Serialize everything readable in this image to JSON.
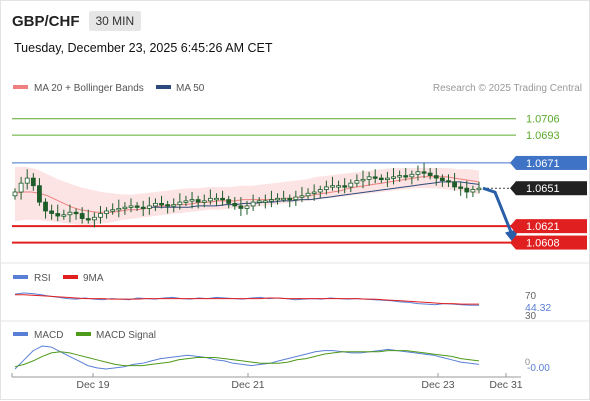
{
  "header": {
    "symbol": "GBP/CHF",
    "timeframe": "30 MIN",
    "datetime": "Tuesday, December 23, 2025 6:45:26 AM CET"
  },
  "legend": {
    "ma20_label": "MA 20 + Bollinger Bands",
    "ma50_label": "MA 50",
    "copyright": "Research © 2025 Trading Central"
  },
  "colors": {
    "ma20": "#f08080",
    "ma50": "#2e4a7d",
    "bands_fill": "#fde4e4",
    "candle": "#1e5c2a",
    "resistance_blue": "#3f73c6",
    "target_green": "#5aaa2a",
    "support_red": "#e02020",
    "price_dark": "#222222",
    "arrow": "#2a5ea8",
    "rsi": "#5a7fd6",
    "rsi_ma": "#e02020",
    "macd": "#5a7fd6",
    "macd_signal": "#4e9a1a"
  },
  "chart_data": [
    {
      "type": "candlestick",
      "name": "price",
      "ylim": [
        1.0595,
        1.072
      ],
      "x_ticks": [
        "Dec 19",
        "Dec 21",
        "Dec 23",
        "Dec 31"
      ],
      "current_price": 1.0651,
      "levels": [
        {
          "value": 1.0706,
          "label": "1.0706",
          "kind": "target"
        },
        {
          "value": 1.0693,
          "label": "1.0693",
          "kind": "target"
        },
        {
          "value": 1.0671,
          "label": "1.0671",
          "kind": "resistance"
        },
        {
          "value": 1.0621,
          "label": "1.0621",
          "kind": "support"
        },
        {
          "value": 1.0608,
          "label": "1.0608",
          "kind": "support"
        }
      ],
      "closes": [
        1.0648,
        1.0655,
        1.0659,
        1.0653,
        1.064,
        1.0633,
        1.0631,
        1.0629,
        1.063,
        1.0632,
        1.0631,
        1.0627,
        1.0626,
        1.0628,
        1.0631,
        1.0633,
        1.0634,
        1.0635,
        1.0636,
        1.0637,
        1.0636,
        1.0635,
        1.0637,
        1.0639,
        1.0638,
        1.0637,
        1.0638,
        1.064,
        1.0641,
        1.0642,
        1.064,
        1.0641,
        1.0643,
        1.0643,
        1.0642,
        1.0639,
        1.0637,
        1.0635,
        1.0637,
        1.064,
        1.0641,
        1.0641,
        1.0642,
        1.0643,
        1.0643,
        1.0642,
        1.0644,
        1.0645,
        1.0647,
        1.0648,
        1.065,
        1.0652,
        1.0653,
        1.0653,
        1.0652,
        1.0655,
        1.0657,
        1.0658,
        1.066,
        1.0659,
        1.0658,
        1.0659,
        1.066,
        1.0661,
        1.066,
        1.0662,
        1.0664,
        1.0663,
        1.0661,
        1.0659,
        1.0657,
        1.0656,
        1.0652,
        1.0651,
        1.0648,
        1.065,
        1.0651
      ],
      "ma20": [
        1.0647,
        1.0648,
        1.0648,
        1.0647,
        1.0645,
        1.0642,
        1.0639,
        1.0636,
        1.0634,
        1.0633,
        1.0632,
        1.0632,
        1.0632,
        1.0633,
        1.0634,
        1.0634,
        1.0635,
        1.0636,
        1.0637,
        1.0637,
        1.0638,
        1.0638,
        1.0639,
        1.064,
        1.064,
        1.0641,
        1.0641,
        1.0641,
        1.0642,
        1.0642,
        1.0642,
        1.0642,
        1.0642,
        1.0643,
        1.0643,
        1.0644,
        1.0645,
        1.0646,
        1.0647,
        1.0648,
        1.0649,
        1.0651,
        1.0652,
        1.0653,
        1.0654,
        1.0655,
        1.0656,
        1.0657,
        1.0658,
        1.0659,
        1.066,
        1.066,
        1.066,
        1.066,
        1.0659,
        1.0658,
        1.0657,
        1.0656
      ],
      "bollinger_upper": [
        1.0668,
        1.0668,
        1.0666,
        1.0662,
        1.0658,
        1.0655,
        1.0652,
        1.065,
        1.0648,
        1.0647,
        1.0646,
        1.0646,
        1.0647,
        1.0648,
        1.0649,
        1.065,
        1.0651,
        1.0651,
        1.0652,
        1.0652,
        1.0652,
        1.0653,
        1.0653,
        1.0654,
        1.0655,
        1.0656,
        1.0657,
        1.0658,
        1.066,
        1.0661,
        1.0662,
        1.0663,
        1.0664,
        1.0665,
        1.0666,
        1.0667,
        1.0667,
        1.0667,
        1.0667,
        1.0667,
        1.0667,
        1.0666,
        1.0666,
        1.0665
      ],
      "bollinger_lower": [
        1.0625,
        1.0626,
        1.0626,
        1.0625,
        1.0624,
        1.0623,
        1.0622,
        1.0622,
        1.0623,
        1.0624,
        1.0626,
        1.0627,
        1.0628,
        1.0629,
        1.063,
        1.0631,
        1.0632,
        1.0633,
        1.0634,
        1.0634,
        1.0635,
        1.0635,
        1.0636,
        1.0637,
        1.0638,
        1.0639,
        1.064,
        1.0641,
        1.0642,
        1.0643,
        1.0644,
        1.0645,
        1.0646,
        1.0647,
        1.0648,
        1.0649,
        1.065,
        1.0651,
        1.0651,
        1.0651,
        1.065,
        1.0649,
        1.0648,
        1.0646
      ],
      "ma50": [
        1.0636,
        1.0636,
        1.0636,
        1.0636,
        1.0636,
        1.0637,
        1.0637,
        1.0637,
        1.0638,
        1.0638,
        1.0639,
        1.0639,
        1.064,
        1.064,
        1.0641,
        1.0641,
        1.0642,
        1.0642,
        1.0643,
        1.0644,
        1.0645,
        1.0646,
        1.0647,
        1.0648,
        1.0649,
        1.065,
        1.0651,
        1.0652,
        1.0653,
        1.0654,
        1.0655,
        1.0656,
        1.0656,
        1.0656,
        1.0655,
        1.0654
      ],
      "forecast_target": 1.0608
    },
    {
      "type": "line",
      "name": "rsi_panel",
      "legend": [
        "RSI",
        "9MA"
      ],
      "ylim": [
        30,
        75
      ],
      "y_ticks": [
        "70",
        "30"
      ],
      "current_value": "44.32",
      "rsi": [
        64,
        66,
        65,
        63,
        60,
        58,
        56,
        55,
        57,
        55,
        54,
        56,
        55,
        54,
        57,
        56,
        55,
        57,
        58,
        56,
        55,
        57,
        56,
        58,
        57,
        56,
        55,
        57,
        58,
        56,
        57,
        56,
        54,
        55,
        56,
        55,
        57,
        56,
        55,
        56,
        55,
        54,
        53,
        52,
        50,
        49,
        47,
        46,
        45,
        47,
        46,
        45,
        44,
        44
      ],
      "rsi_ma": [
        63,
        63,
        62,
        61,
        60,
        59,
        58,
        57,
        56,
        56,
        56,
        55,
        55,
        55,
        55,
        56,
        56,
        56,
        56,
        56,
        56,
        56,
        56,
        56,
        56,
        56,
        56,
        56,
        56,
        57,
        57,
        56,
        56,
        56,
        56,
        56,
        56,
        56,
        56,
        56,
        55,
        55,
        54,
        53,
        52,
        51,
        50,
        49,
        48,
        47,
        47,
        46,
        46,
        46
      ]
    },
    {
      "type": "line",
      "name": "macd_panel",
      "legend": [
        "MACD",
        "MACD Signal"
      ],
      "y_ticks": [
        "0",
        "-0.00"
      ],
      "macd": [
        -0.6,
        0.2,
        1.0,
        1.4,
        1.3,
        0.9,
        0.5,
        0.1,
        -0.3,
        -0.5,
        -0.6,
        -0.5,
        -0.4,
        -0.2,
        -0.1,
        0.1,
        0.3,
        0.4,
        0.5,
        0.6,
        0.5,
        0.4,
        0.2,
        0.1,
        -0.1,
        -0.2,
        -0.3,
        -0.2,
        -0.1,
        0.1,
        0.3,
        0.5,
        0.7,
        0.9,
        1.0,
        1.0,
        0.9,
        0.8,
        0.8,
        0.9,
        1.0,
        1.1,
        1.0,
        0.9,
        0.8,
        0.7,
        0.6,
        0.4,
        0.2,
        0.0,
        -0.1,
        -0.2
      ],
      "macd_signal": [
        -0.4,
        -0.2,
        0.1,
        0.5,
        0.8,
        0.9,
        0.8,
        0.6,
        0.4,
        0.2,
        0.0,
        -0.2,
        -0.3,
        -0.3,
        -0.3,
        -0.2,
        -0.1,
        0.0,
        0.2,
        0.3,
        0.4,
        0.4,
        0.4,
        0.3,
        0.2,
        0.1,
        0.0,
        -0.1,
        -0.1,
        -0.1,
        0.0,
        0.2,
        0.3,
        0.5,
        0.7,
        0.8,
        0.9,
        0.9,
        0.9,
        0.9,
        0.9,
        1.0,
        1.0,
        1.0,
        0.9,
        0.8,
        0.7,
        0.6,
        0.5,
        0.3,
        0.2,
        0.1
      ]
    }
  ]
}
